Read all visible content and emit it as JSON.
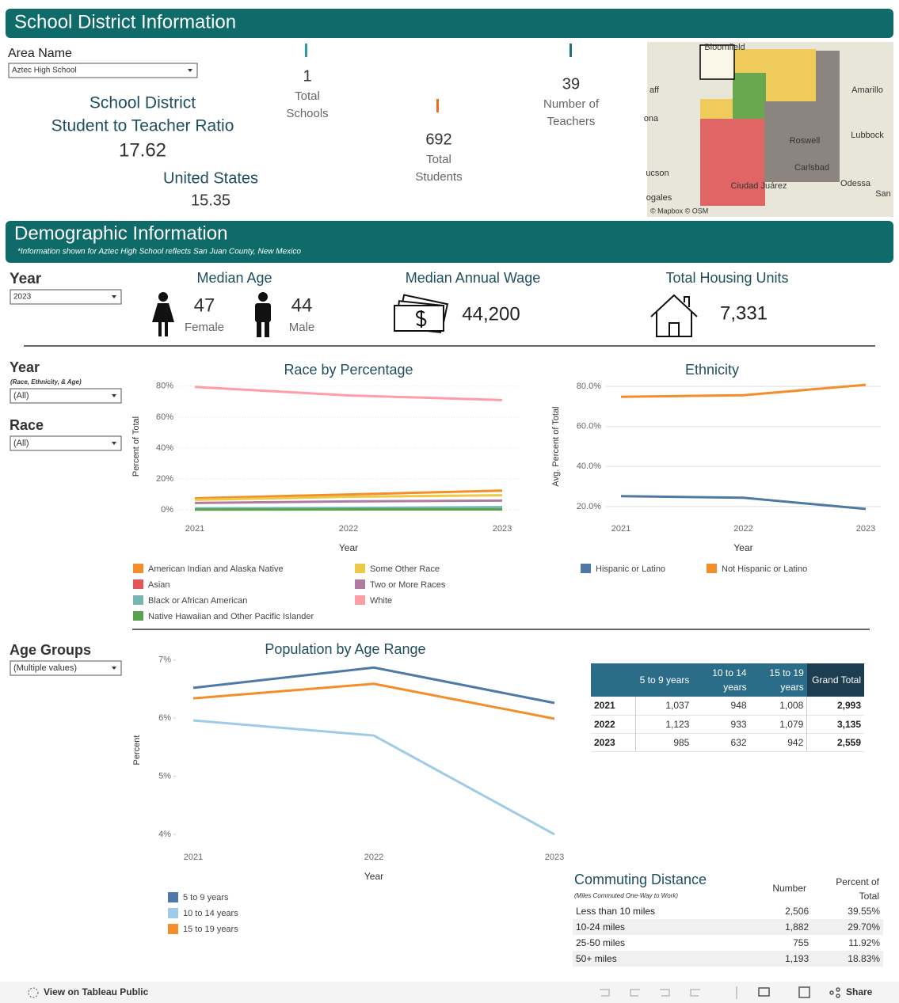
{
  "header": {
    "title": "School District Information"
  },
  "area_filter": {
    "label": "Area Name",
    "value": "Aztec High School"
  },
  "ratio": {
    "title": "School District",
    "subtitle": "Student to Teacher Ratio",
    "value": 17.62,
    "us_label": "United States",
    "us_value": 15.35
  },
  "kpis": [
    {
      "value": 1,
      "label": [
        "Total",
        "Schools"
      ]
    },
    {
      "value": 692,
      "label": [
        "Total",
        "Students"
      ]
    },
    {
      "value": 39,
      "label": [
        "Number of",
        "Teachers"
      ]
    }
  ],
  "map": {
    "labels": [
      "Bloomfield",
      "Amarillo",
      "Lubbock",
      "Odessa",
      "San",
      "aff",
      "ona",
      "ucson",
      "ogales",
      "Roswell",
      "Carlsbad",
      "Ciudad Juárez"
    ],
    "attribution": "© Mapbox  © OSM"
  },
  "demographics": {
    "title": "Demographic Information",
    "note": "*Information shown for Aztec High School reflects San Juan County, New Mexico"
  },
  "year_filter": {
    "label": "Year",
    "value": "2023"
  },
  "median_age": {
    "title": "Median Age",
    "female": {
      "value": 47,
      "label": "Female"
    },
    "male": {
      "value": 44,
      "label": "Male"
    }
  },
  "median_wage": {
    "title": "Median Annual Wage",
    "value": "44,200"
  },
  "housing": {
    "title": "Total Housing Units",
    "value": "7,331"
  },
  "filters": [
    {
      "label": "Year",
      "note": "(Race, Ethnicity, & Age)",
      "value": "(All)"
    },
    {
      "label": "Race",
      "value": "(All)"
    },
    {
      "label": "Age Groups",
      "value": "(Multiple values)"
    }
  ],
  "chart_data": [
    {
      "type": "line",
      "title": "Race by Percentage",
      "x_label": "Year",
      "y_label": "Percent of Total",
      "categories": [
        "2021",
        "2022",
        "2023"
      ],
      "ylim": [
        -3,
        85
      ],
      "yticks": [
        {
          "value": 0,
          "label": "0%"
        },
        {
          "value": 20,
          "label": "20%"
        },
        {
          "value": 40,
          "label": "40%"
        },
        {
          "value": 60,
          "label": "60%"
        },
        {
          "value": 80,
          "label": "80%"
        }
      ],
      "grid": true,
      "series": [
        {
          "name": "American Indian and Alaska Native",
          "color": "#f28e2b",
          "values": [
            7.5,
            10,
            12.5
          ]
        },
        {
          "name": "Asian",
          "color": "#e15759",
          "values": [
            0.8,
            0.8,
            0.5
          ]
        },
        {
          "name": "Black or African American",
          "color": "#76b7b2",
          "values": [
            1,
            1.3,
            1.8
          ]
        },
        {
          "name": "Native Hawaiian and Other Pacific Islander",
          "color": "#59a14f",
          "values": [
            0.2,
            0.3,
            0.3
          ]
        },
        {
          "name": "Some Other Race",
          "color": "#edc948",
          "values": [
            6.5,
            8.5,
            9.5
          ]
        },
        {
          "name": "Two or More Races",
          "color": "#b07aa1",
          "values": [
            4.5,
            5.5,
            6
          ]
        },
        {
          "name": "White",
          "color": "#ff9da7",
          "values": [
            79.5,
            74,
            71
          ]
        }
      ]
    },
    {
      "type": "line",
      "title": "Ethnicity",
      "x_label": "Year",
      "y_label": "Avg. Percent of Total",
      "categories": [
        "2021",
        "2022",
        "2023"
      ],
      "ylim": [
        16,
        84
      ],
      "yticks": [
        {
          "value": 20,
          "label": "20.0%"
        },
        {
          "value": 40,
          "label": "40.0%"
        },
        {
          "value": 60,
          "label": "60.0%"
        },
        {
          "value": 80,
          "label": "80.0%"
        }
      ],
      "grid": true,
      "series": [
        {
          "name": "Hispanic or Latino",
          "color": "#4e79a7",
          "values": [
            25.2,
            24.4,
            18.8
          ]
        },
        {
          "name": "Not Hispanic or Latino",
          "color": "#f28e2b",
          "values": [
            74.8,
            75.6,
            80.8
          ]
        }
      ]
    },
    {
      "type": "line",
      "title": "Population by Age Range",
      "x_label": "Year",
      "y_label": "Percent",
      "categories": [
        "2021",
        "2022",
        "2023"
      ],
      "ylim": [
        3.85,
        7.05
      ],
      "yticks": [
        {
          "value": 4,
          "label": "4%"
        },
        {
          "value": 5,
          "label": "5%"
        },
        {
          "value": 6,
          "label": "6%"
        },
        {
          "value": 7,
          "label": "7%"
        }
      ],
      "grid": false,
      "series": [
        {
          "name": "5 to 9 years",
          "color": "#4e79a7",
          "values": [
            6.52,
            6.87,
            6.26
          ]
        },
        {
          "name": "10 to 14 years",
          "color": "#a0cbe8",
          "values": [
            5.96,
            5.7,
            4.0
          ]
        },
        {
          "name": "15 to 19 years",
          "color": "#f28e2b",
          "values": [
            6.34,
            6.59,
            5.99
          ]
        }
      ]
    }
  ],
  "age_table": {
    "columns": [
      "5 to 9 years",
      "10 to 14 years",
      "15 to 19 years",
      "Grand Total"
    ],
    "rows": [
      [
        "2021",
        "1,037",
        "948",
        "1,008",
        "2,993"
      ],
      [
        "2022",
        "1,123",
        "933",
        "1,079",
        "3,135"
      ],
      [
        "2023",
        "985",
        "632",
        "942",
        "2,559"
      ]
    ]
  },
  "commuting": {
    "title": "Commuting Distance",
    "subtitle": "(Miles Commuted One-Way to Work)",
    "columns": [
      "Number",
      "Percent of Total"
    ],
    "rows": [
      [
        "Less than 10 miles",
        "2,506",
        "39.55%"
      ],
      [
        "10-24 miles",
        "1,882",
        "29.70%"
      ],
      [
        "25-50 miles",
        "755",
        "11.92%"
      ],
      [
        "50+ miles",
        "1,193",
        "18.83%"
      ]
    ]
  },
  "footer": {
    "link": "View on Tableau Public",
    "share": "Share"
  }
}
